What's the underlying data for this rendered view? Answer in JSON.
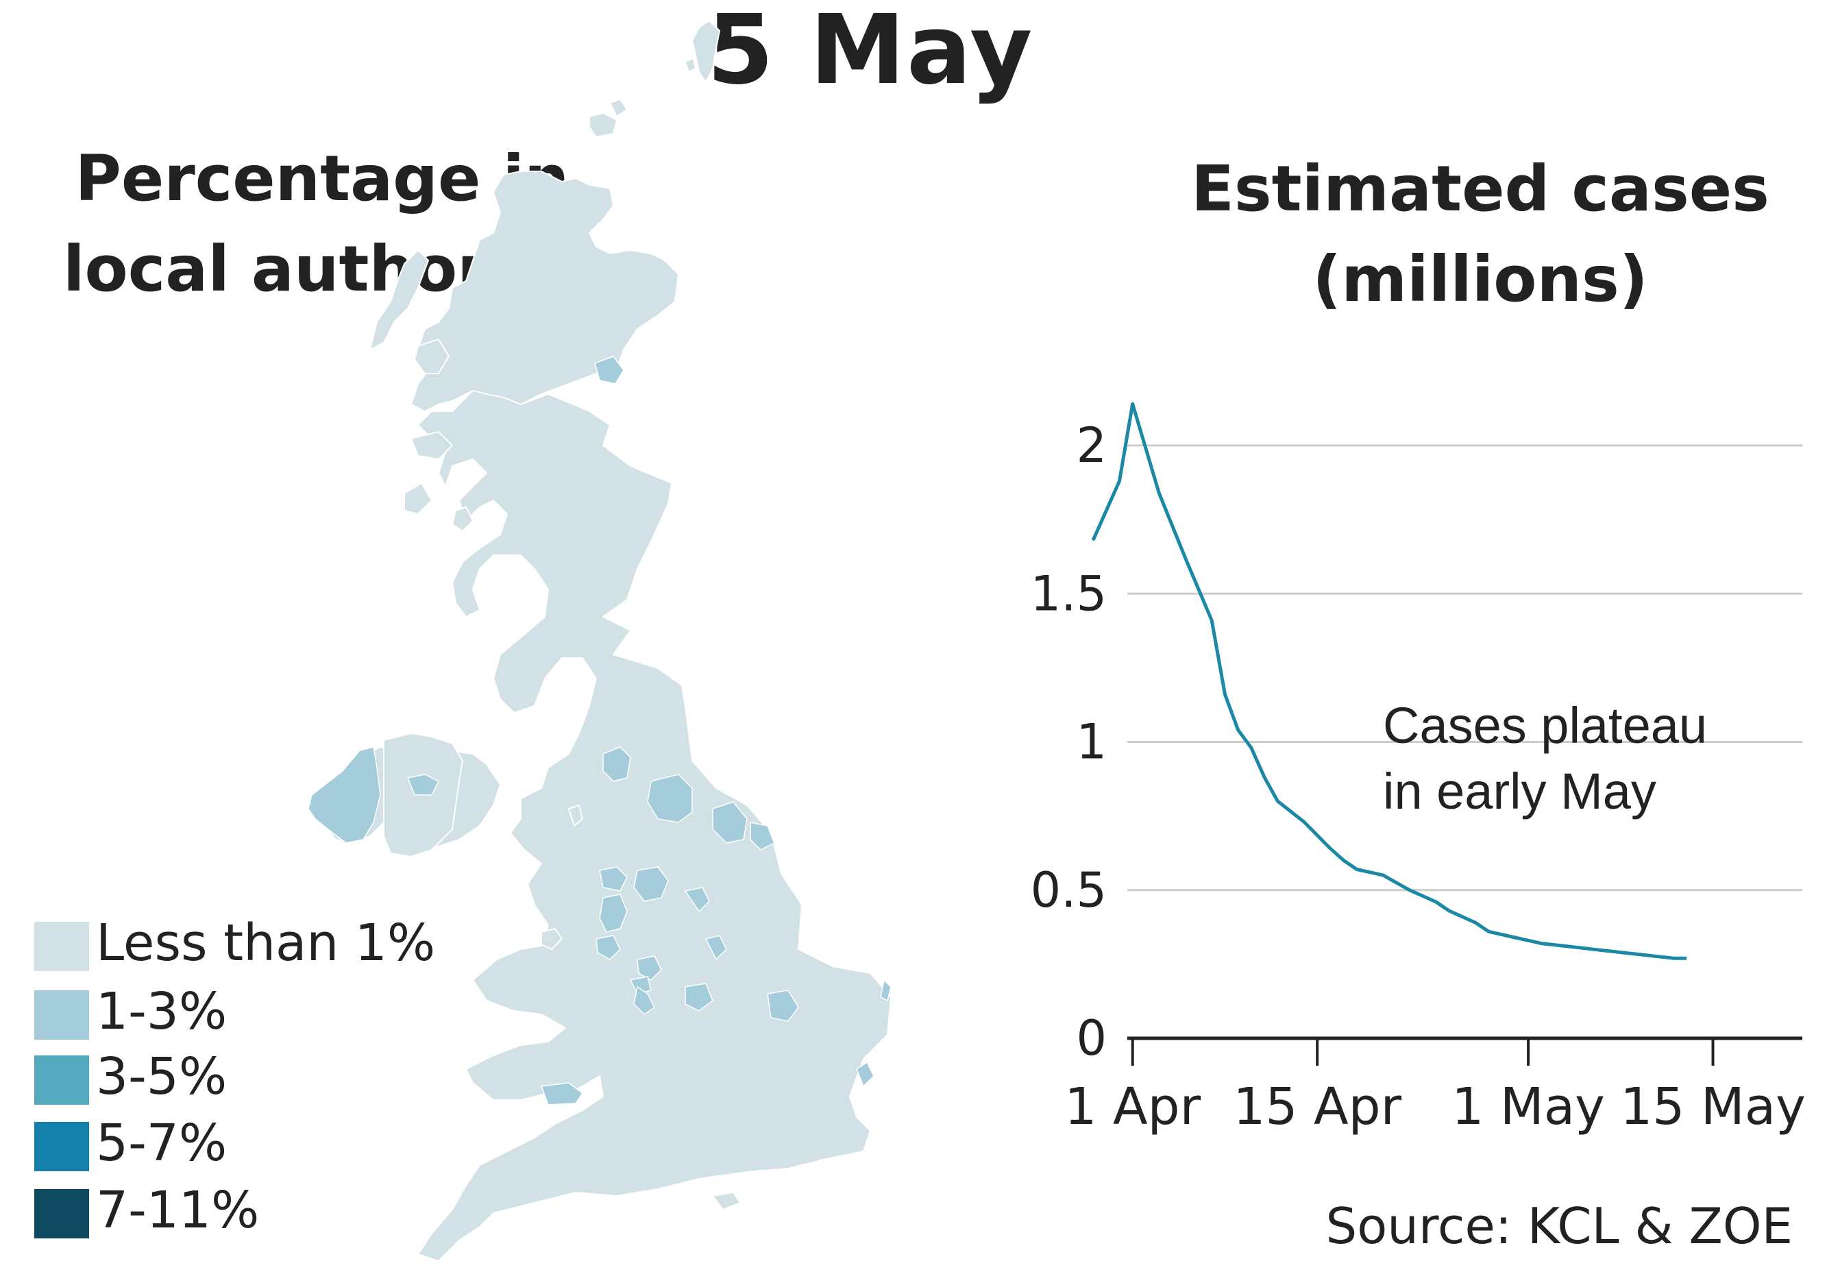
{
  "header": {
    "title": "5 May"
  },
  "map": {
    "title_line1": "Percentage in",
    "title_line2": "local authority",
    "legend": [
      {
        "label": "Less than 1%",
        "color": "#d1e1e6"
      },
      {
        "label": "1-3%",
        "color": "#a4ccda"
      },
      {
        "label": "3-5%",
        "color": "#55a9bf"
      },
      {
        "label": "5-7%",
        "color": "#1580a9"
      },
      {
        "label": "7-11%",
        "color": "#0d4a60"
      }
    ]
  },
  "source": "Source: KCL & ZOE",
  "chart_data": {
    "type": "line",
    "title": "Estimated cases (millions)",
    "title_line1": "Estimated cases",
    "title_line2": "(millions)",
    "xlabel": "",
    "ylabel": "",
    "xlim": [
      "2021-03-29",
      "2021-05-21"
    ],
    "ylim": [
      0,
      2.2
    ],
    "y_ticks": [
      0,
      0.5,
      1,
      1.5,
      2
    ],
    "y_tick_labels": [
      "0",
      "0.5",
      "1",
      "1.5",
      "2"
    ],
    "x_ticks": [
      "2021-04-01",
      "2021-04-15",
      "2021-05-01",
      "2021-05-15"
    ],
    "x_tick_labels": [
      "1 Apr",
      "15 Apr",
      "1 May",
      "15 May"
    ],
    "grid": true,
    "line_color": "#1b88a5",
    "annotation": {
      "line1": "Cases plateau",
      "line2": "in early May"
    },
    "series": [
      {
        "x": [
          "2021-03-29",
          "2021-03-31",
          "2021-04-01",
          "2021-04-03",
          "2021-04-05",
          "2021-04-07",
          "2021-04-08",
          "2021-04-09",
          "2021-04-10",
          "2021-04-11",
          "2021-04-12",
          "2021-04-14",
          "2021-04-16",
          "2021-04-17",
          "2021-04-18",
          "2021-04-20",
          "2021-04-22",
          "2021-04-24",
          "2021-04-25",
          "2021-04-27",
          "2021-04-28",
          "2021-04-30",
          "2021-05-02",
          "2021-05-04",
          "2021-05-06",
          "2021-05-08",
          "2021-05-10",
          "2021-05-12",
          "2021-05-13"
        ],
        "values": [
          1.68,
          1.88,
          2.14,
          1.84,
          1.62,
          1.41,
          1.16,
          1.04,
          0.98,
          0.88,
          0.8,
          0.73,
          0.64,
          0.6,
          0.57,
          0.55,
          0.5,
          0.46,
          0.43,
          0.39,
          0.36,
          0.34,
          0.32,
          0.31,
          0.3,
          0.29,
          0.28,
          0.27,
          0.27
        ]
      }
    ]
  }
}
